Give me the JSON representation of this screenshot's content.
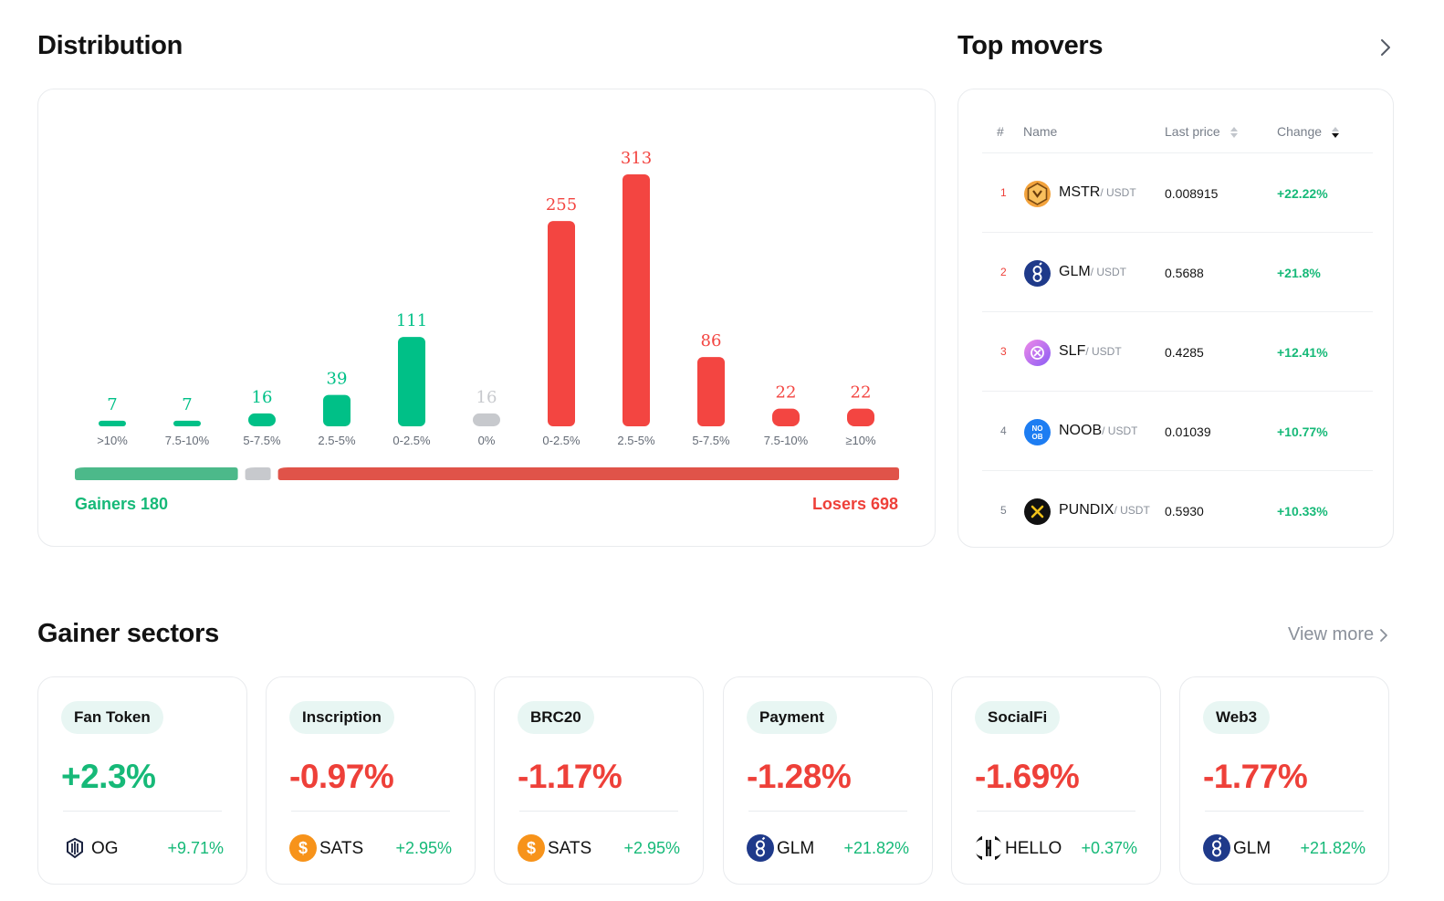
{
  "distribution": {
    "title": "Distribution",
    "gainers_label": "Gainers 180",
    "losers_label": "Losers 698",
    "split": {
      "gainers": 180,
      "flat": 16,
      "losers": 698
    },
    "colors": {
      "gain": "#00c087",
      "loss": "#f34541",
      "flat": "#c7c9cd",
      "gain_bar": "#4cb98a",
      "loss_bar": "#e05349",
      "flat_bar": "#c7c9cd"
    }
  },
  "chart_data": {
    "type": "bar",
    "title": "",
    "xlabel": "",
    "ylabel": "",
    "categories": [
      ">10%",
      "7.5-10%",
      "5-7.5%",
      "2.5-5%",
      "0-2.5%",
      "0%",
      "0-2.5%",
      "2.5-5%",
      "5-7.5%",
      "7.5-10%",
      "≥10%"
    ],
    "values": [
      7,
      7,
      16,
      39,
      111,
      16,
      255,
      313,
      86,
      22,
      22
    ],
    "groups": [
      "gain",
      "gain",
      "gain",
      "gain",
      "gain",
      "flat",
      "loss",
      "loss",
      "loss",
      "loss",
      "loss"
    ],
    "ylim": [
      0,
      313
    ],
    "grid": false
  },
  "movers": {
    "title": "Top movers",
    "columns": {
      "rank": "#",
      "name": "Name",
      "price": "Last price",
      "change": "Change"
    },
    "rows": [
      {
        "rank": "1",
        "symbol": "MSTR",
        "quote": "/ USDT",
        "price": "0.008915",
        "change": "+22.22%",
        "icon": "mstr-coin-icon"
      },
      {
        "rank": "2",
        "symbol": "GLM",
        "quote": "/ USDT",
        "price": "0.5688",
        "change": "+21.8%",
        "icon": "glm-coin-icon"
      },
      {
        "rank": "3",
        "symbol": "SLF",
        "quote": "/ USDT",
        "price": "0.4285",
        "change": "+12.41%",
        "icon": "slf-coin-icon"
      },
      {
        "rank": "4",
        "symbol": "NOOB",
        "quote": "/ USDT",
        "price": "0.01039",
        "change": "+10.77%",
        "icon": "noob-coin-icon"
      },
      {
        "rank": "5",
        "symbol": "PUNDIX",
        "quote": "/ USDT",
        "price": "0.5930",
        "change": "+10.33%",
        "icon": "pundix-coin-icon"
      }
    ]
  },
  "sectors": {
    "title": "Gainer sectors",
    "view_more": "View more",
    "items": [
      {
        "name": "Fan Token",
        "change": "+2.3%",
        "direction": "up",
        "coin": "OG",
        "coin_change": "+9.71%",
        "icon": "og-coin-icon"
      },
      {
        "name": "Inscription",
        "change": "-0.97%",
        "direction": "down",
        "coin": "SATS",
        "coin_change": "+2.95%",
        "icon": "sats-coin-icon"
      },
      {
        "name": "BRC20",
        "change": "-1.17%",
        "direction": "down",
        "coin": "SATS",
        "coin_change": "+2.95%",
        "icon": "sats-coin-icon"
      },
      {
        "name": "Payment",
        "change": "-1.28%",
        "direction": "down",
        "coin": "GLM",
        "coin_change": "+21.82%",
        "icon": "glm-coin-icon"
      },
      {
        "name": "SocialFi",
        "change": "-1.69%",
        "direction": "down",
        "coin": "HELLO",
        "coin_change": "+0.37%",
        "icon": "hello-coin-icon"
      },
      {
        "name": "Web3",
        "change": "-1.77%",
        "direction": "down",
        "coin": "GLM",
        "coin_change": "+21.82%",
        "icon": "glm-coin-icon"
      }
    ]
  }
}
